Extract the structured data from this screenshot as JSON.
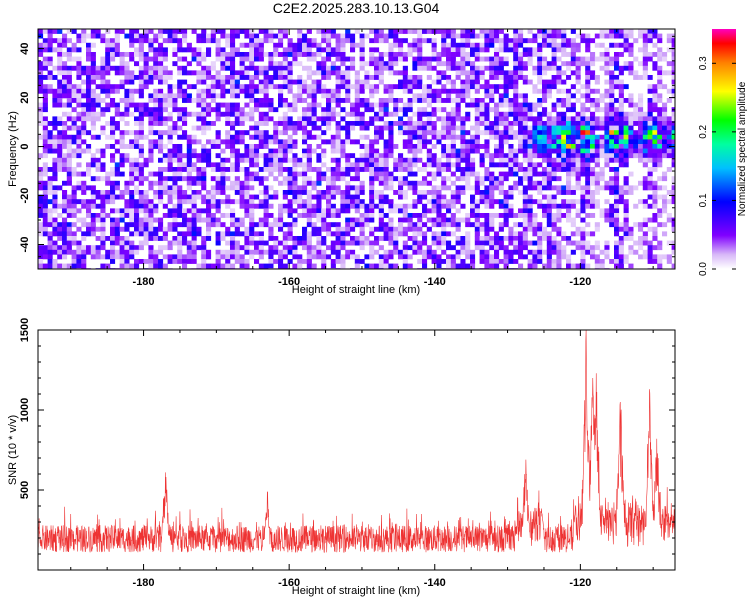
{
  "title": "C2E2.2025.283.10.13.G04",
  "chart_data": [
    {
      "type": "heatmap",
      "xlabel": "Height of straight line (km)",
      "ylabel": "Frequency (Hz)",
      "xlim": [
        -194.5,
        -107
      ],
      "ylim": [
        -50,
        48
      ],
      "x_ticks": [
        -180,
        -160,
        -140,
        -120
      ],
      "y_ticks": [
        -40,
        -20,
        0,
        20,
        40
      ],
      "colorbar": {
        "label": "Normalized spectral amplitude",
        "range": [
          0,
          0.35
        ],
        "ticks": [
          0.0,
          0.1,
          0.2,
          0.3
        ],
        "colormap": "rainbow (white → purple → blue → cyan → green → yellow → red → magenta)"
      },
      "features": {
        "background_level": "~0.02–0.06 (purple speckle) across all heights",
        "signal_band": {
          "x_range": [
            -129,
            -107
          ],
          "frequency_center_hz": 4,
          "frequency_halfwidth_hz": 6,
          "peak_amplitude": 0.33
        },
        "low_amplitude_columns_x": [
          -121.5,
          -117.5,
          -112.5,
          -108.5
        ]
      },
      "grid": false
    },
    {
      "type": "line",
      "xlabel": "Height of straight line (km)",
      "ylabel": "SNR (10 * v/v)",
      "xlim": [
        -194.5,
        -107
      ],
      "ylim": [
        0,
        1500
      ],
      "x_ticks": [
        -180,
        -160,
        -140,
        -120
      ],
      "y_ticks": [
        500,
        1000,
        1500
      ],
      "series": [
        {
          "color": "#ee3333",
          "description": "noisy SNR trace, baseline ~100–300",
          "peaks": [
            {
              "x": -177,
              "y": 610
            },
            {
              "x": -163,
              "y": 490
            },
            {
              "x": -127.5,
              "y": 690
            },
            {
              "x": -119.2,
              "y": 1500
            },
            {
              "x": -118.3,
              "y": 1200
            },
            {
              "x": -117.8,
              "y": 1230
            },
            {
              "x": -114.5,
              "y": 1050
            },
            {
              "x": -110.5,
              "y": 1130
            },
            {
              "x": -109.5,
              "y": 820
            }
          ]
        }
      ],
      "grid": false
    }
  ]
}
